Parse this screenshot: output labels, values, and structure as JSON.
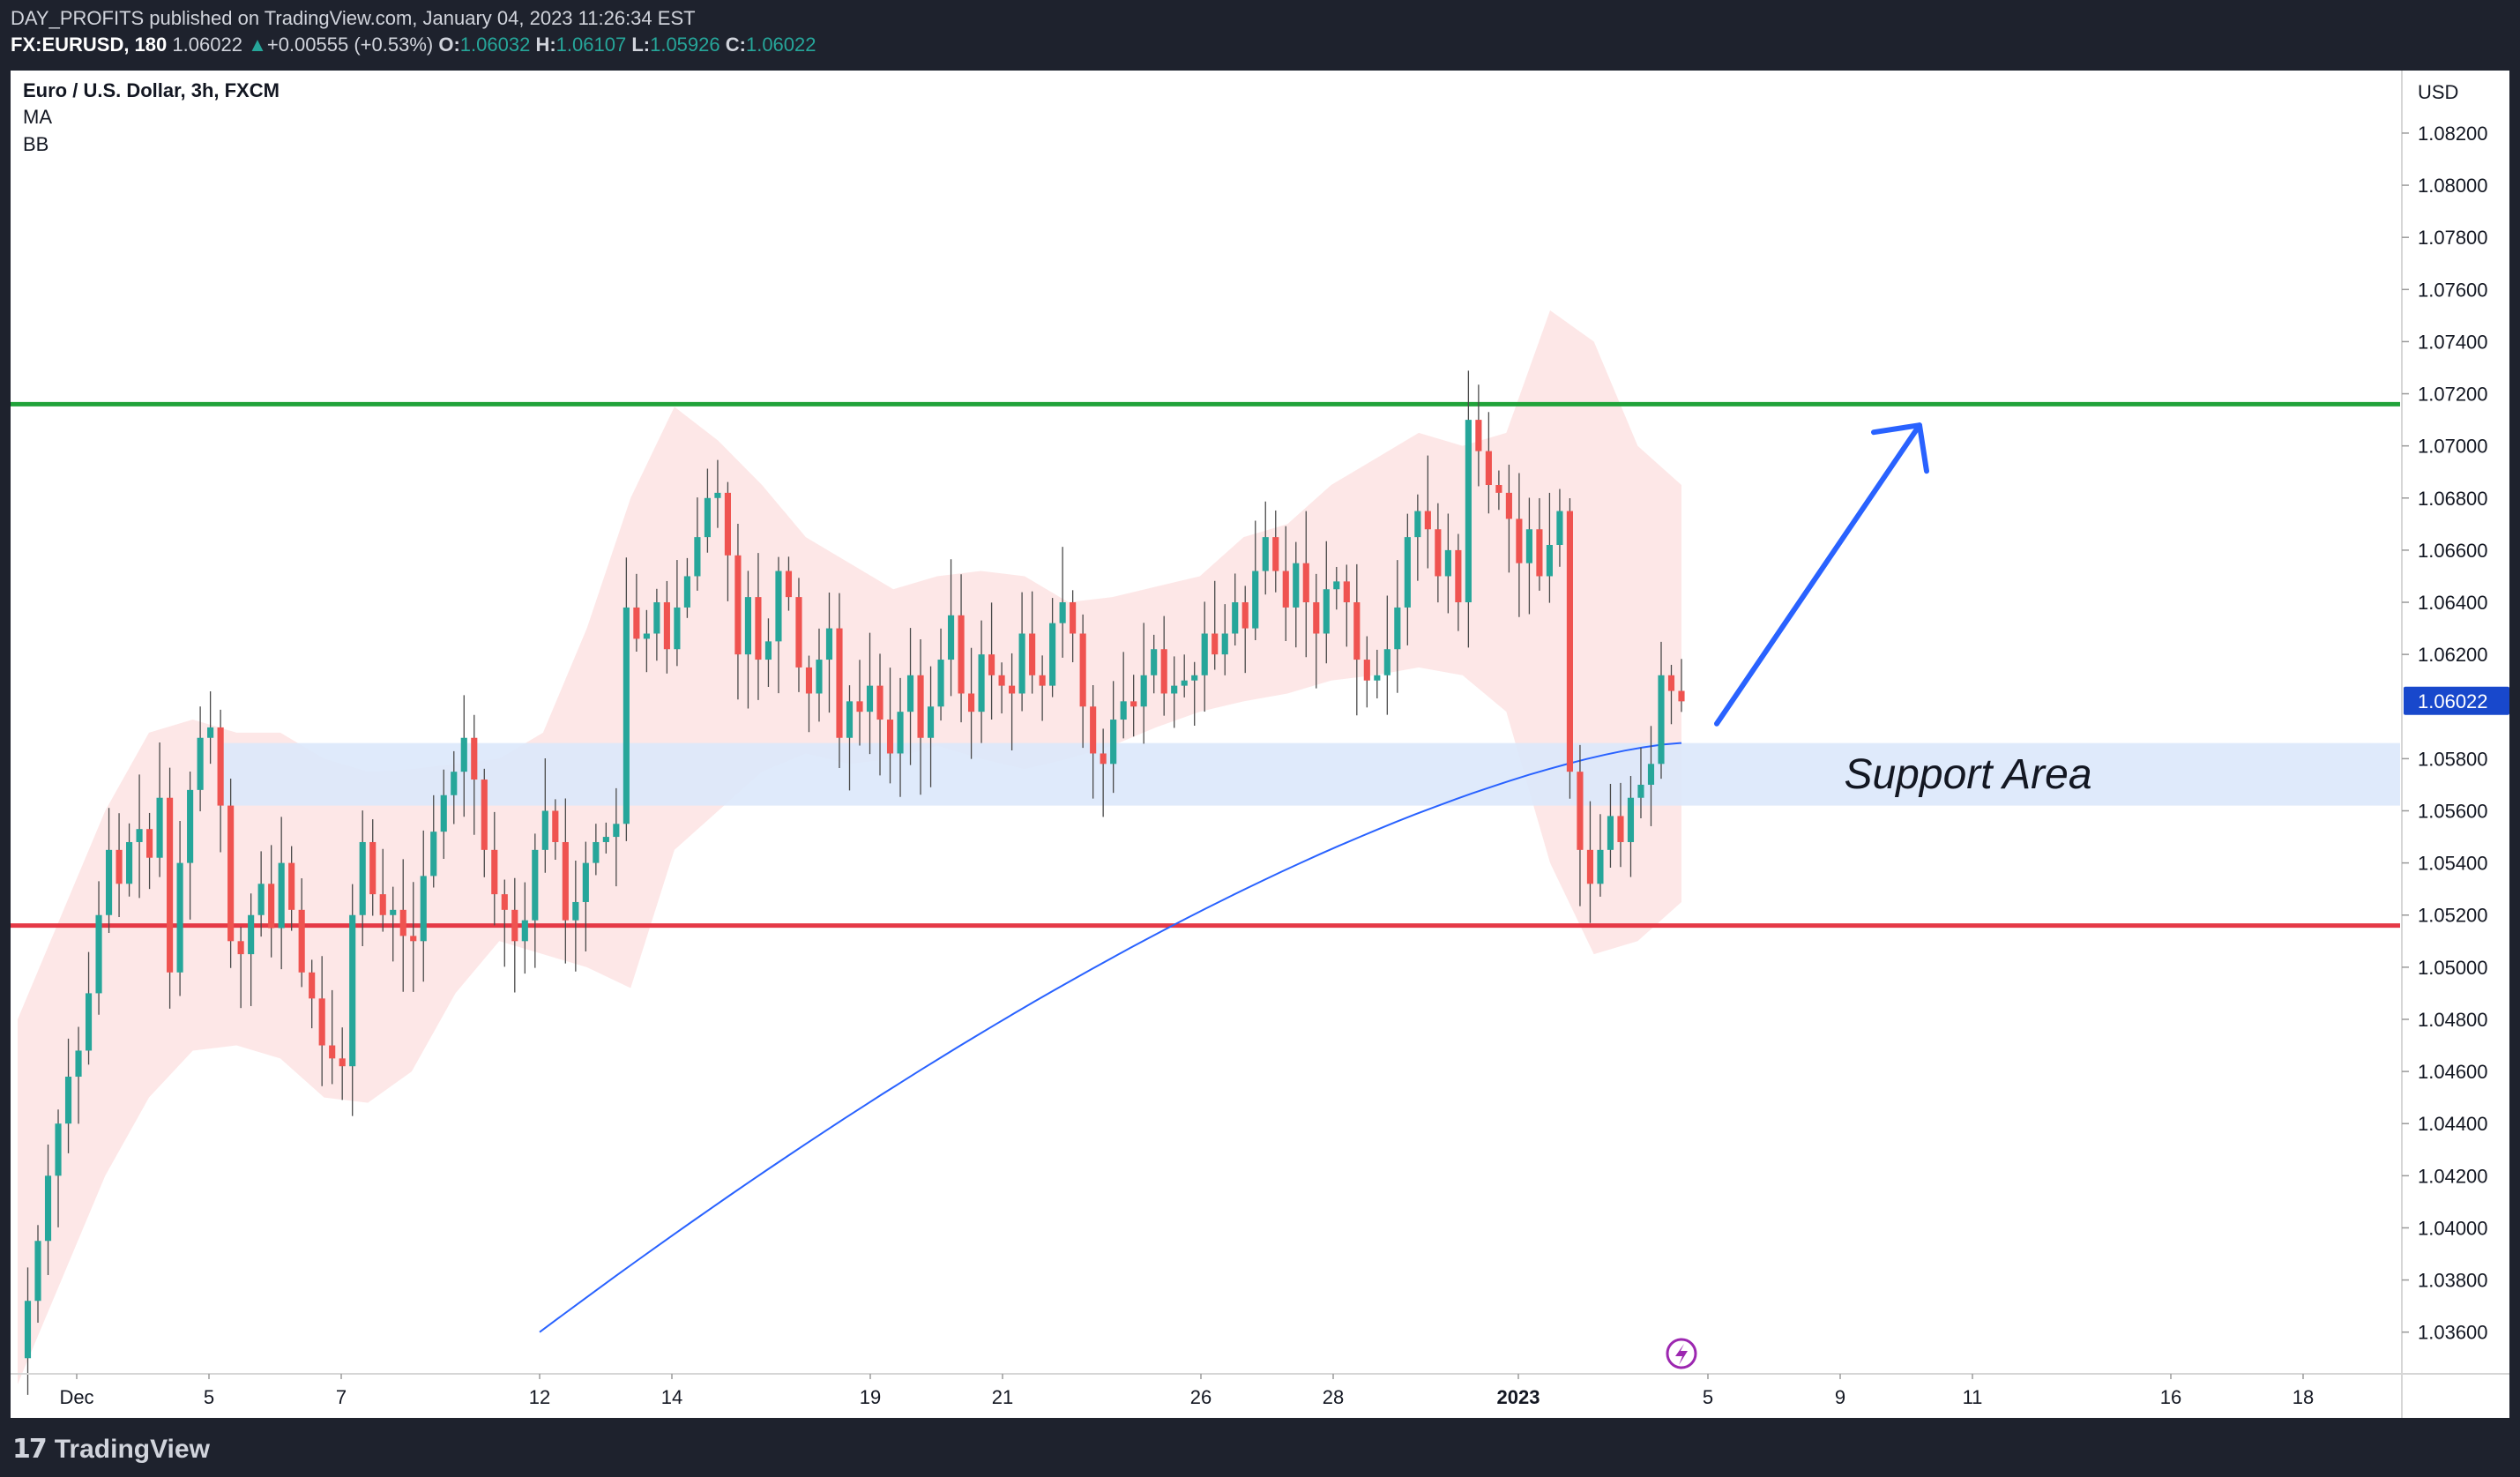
{
  "header": {
    "publisher_line": "DAY_PROFITS published on TradingView.com, January 04, 2023 11:26:34 EST",
    "symbol": "FX:EURUSD, 180",
    "last": "1.06022",
    "change_arrow": "▲",
    "change": "+0.00555 (+0.53%)",
    "o_label": "O:",
    "o_value": "1.06032",
    "h_label": "H:",
    "h_value": "1.06107",
    "l_label": "L:",
    "l_value": "1.05926",
    "c_label": "C:",
    "c_value": "1.06022"
  },
  "legend": {
    "title": "Euro / U.S. Dollar, 3h, FXCM",
    "indicator_ma": "MA",
    "indicator_bb": "BB"
  },
  "footer": {
    "logo_mark": "𝟭𝟳",
    "logo_text": "TradingView"
  },
  "colors": {
    "bull": "#26a69a",
    "bear": "#ef5350",
    "resistance": "#21a33a",
    "support_line": "#e53946",
    "support_zone": "#dce8fb",
    "bb_fill": "#fde3e3",
    "ma": "#2962ff",
    "arrow": "#2962ff",
    "price_tag": "#1848cc",
    "lightning": "#9c27b0"
  },
  "chart_data": {
    "type": "candlestick",
    "title": "Euro / U.S. Dollar, 3h, FXCM",
    "currency_label": "USD",
    "ylim": [
      1.0344,
      1.0844
    ],
    "yticks": [
      "1.08200",
      "1.08000",
      "1.07800",
      "1.07600",
      "1.07400",
      "1.07200",
      "1.07000",
      "1.06800",
      "1.06600",
      "1.06400",
      "1.06200",
      "1.05800",
      "1.05600",
      "1.05400",
      "1.05200",
      "1.05000",
      "1.04800",
      "1.04600",
      "1.04400",
      "1.04200",
      "1.04000",
      "1.03800",
      "1.03600"
    ],
    "xticks": [
      {
        "label": "Dec",
        "bold": false
      },
      {
        "label": "5",
        "bold": false
      },
      {
        "label": "7",
        "bold": false
      },
      {
        "label": "12",
        "bold": false
      },
      {
        "label": "14",
        "bold": false
      },
      {
        "label": "19",
        "bold": false
      },
      {
        "label": "21",
        "bold": false
      },
      {
        "label": "26",
        "bold": false
      },
      {
        "label": "28",
        "bold": false
      },
      {
        "label": "2023",
        "bold": true
      },
      {
        "label": "5",
        "bold": false
      },
      {
        "label": "9",
        "bold": false
      },
      {
        "label": "11",
        "bold": false
      },
      {
        "label": "16",
        "bold": false
      },
      {
        "label": "18",
        "bold": false
      }
    ],
    "current_price": "1.06022",
    "resistance_level": 1.0716,
    "support_level": 1.0516,
    "support_zone": {
      "low": 1.0562,
      "high": 1.0586,
      "label": "Support Area"
    },
    "path": [
      1.035,
      1.0372,
      1.0395,
      1.042,
      1.044,
      1.0458,
      1.0468,
      1.049,
      1.052,
      1.0545,
      1.0532,
      1.0548,
      1.0553,
      1.0542,
      1.0565,
      1.0498,
      1.054,
      1.0568,
      1.0588,
      1.0592,
      1.0562,
      1.051,
      1.0505,
      1.052,
      1.0532,
      1.0515,
      1.054,
      1.0522,
      1.0498,
      1.0488,
      1.047,
      1.0465,
      1.0462,
      1.052,
      1.0548,
      1.0528,
      1.052,
      1.0522,
      1.0512,
      1.051,
      1.0535,
      1.0552,
      1.0566,
      1.0575,
      1.0588,
      1.0572,
      1.0545,
      1.0528,
      1.0522,
      1.051,
      1.0518,
      1.0545,
      1.056,
      1.0548,
      1.0518,
      1.0525,
      1.054,
      1.0548,
      1.055,
      1.0555,
      1.0638,
      1.0626,
      1.0628,
      1.064,
      1.0622,
      1.0638,
      1.065,
      1.0665,
      1.068,
      1.0682,
      1.0658,
      1.062,
      1.0642,
      1.0618,
      1.0625,
      1.0652,
      1.0642,
      1.0615,
      1.0605,
      1.0618,
      1.063,
      1.0588,
      1.0602,
      1.0598,
      1.0608,
      1.0595,
      1.0582,
      1.0598,
      1.0612,
      1.0588,
      1.06,
      1.0618,
      1.0635,
      1.0605,
      1.0598,
      1.062,
      1.0612,
      1.0608,
      1.0605,
      1.0628,
      1.0612,
      1.0608,
      1.0632,
      1.064,
      1.0628,
      1.06,
      1.0582,
      1.0578,
      1.0595,
      1.0602,
      1.06,
      1.0612,
      1.0622,
      1.0605,
      1.0608,
      1.061,
      1.0612,
      1.0628,
      1.062,
      1.0628,
      1.064,
      1.063,
      1.0652,
      1.0665,
      1.0652,
      1.0638,
      1.0655,
      1.064,
      1.0628,
      1.0645,
      1.0648,
      1.064,
      1.0618,
      1.061,
      1.0612,
      1.0622,
      1.0638,
      1.0665,
      1.0675,
      1.0668,
      1.065,
      1.066,
      1.064,
      1.071,
      1.0698,
      1.0685,
      1.0682,
      1.0672,
      1.0655,
      1.0668,
      1.065,
      1.0662,
      1.0675,
      1.0575,
      1.0545,
      1.0532,
      1.0545,
      1.0558,
      1.0548,
      1.0565,
      1.057,
      1.0578,
      1.0612,
      1.0606,
      1.0602
    ],
    "bollinger": {
      "upper": [
        1.048,
        1.052,
        1.056,
        1.059,
        1.0595,
        1.059,
        1.059,
        1.058,
        1.0575,
        1.0576,
        1.0578,
        1.058,
        1.059,
        1.063,
        1.068,
        1.0715,
        1.0702,
        1.0685,
        1.0665,
        1.0655,
        1.0645,
        1.065,
        1.0652,
        1.065,
        1.064,
        1.0642,
        1.0646,
        1.065,
        1.0665,
        1.067,
        1.0685,
        1.0695,
        1.0705,
        1.07,
        1.0705,
        1.0752,
        1.074,
        1.07,
        1.0685
      ],
      "lower": [
        1.034,
        1.038,
        1.042,
        1.045,
        1.0468,
        1.047,
        1.0465,
        1.045,
        1.0448,
        1.046,
        1.049,
        1.051,
        1.0505,
        1.05,
        1.0492,
        1.0545,
        1.056,
        1.0575,
        1.0582,
        1.0578,
        1.058,
        1.0585,
        1.058,
        1.0576,
        1.058,
        1.0585,
        1.0592,
        1.0598,
        1.0602,
        1.0605,
        1.061,
        1.0612,
        1.0615,
        1.0612,
        1.0598,
        1.054,
        1.0505,
        1.051,
        1.0525
      ]
    },
    "moving_average": {
      "start": 1.036,
      "end": 1.0586,
      "start_date": "Dec 12",
      "end_date": "Jan 4"
    },
    "projection_arrow": {
      "from": 1.0588,
      "to": 1.0712,
      "direction": "up"
    }
  }
}
